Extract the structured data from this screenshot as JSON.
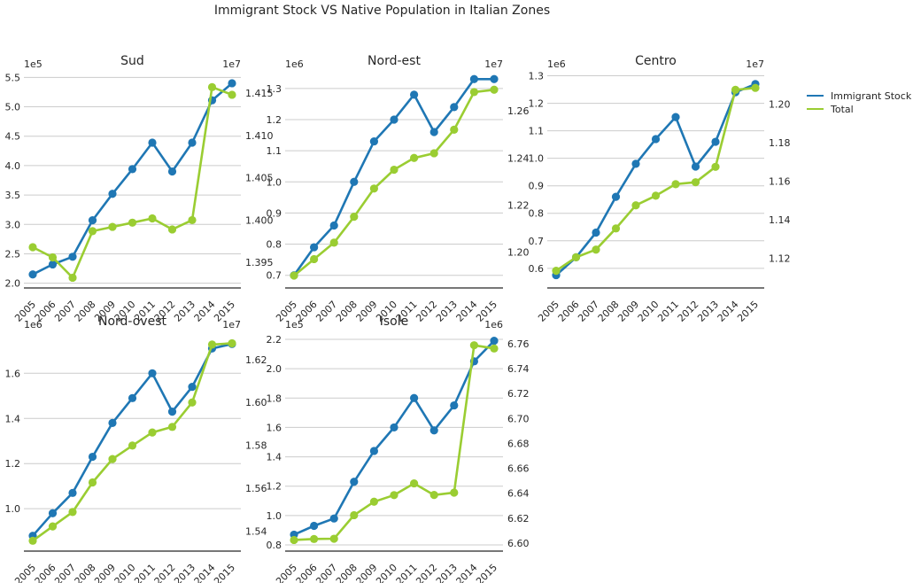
{
  "title": "Immigrant Stock VS Native Population in Italian Zones",
  "colors": {
    "immigrant": "#1f77b4",
    "total": "#9acd32"
  },
  "legend": {
    "placement": "top-right",
    "items": [
      "Immigrant Stock",
      "Total"
    ]
  },
  "chart_data": [
    {
      "type": "line",
      "panel_title": "Sud",
      "x": [
        "2005",
        "2006",
        "2007",
        "2008",
        "2009",
        "2010",
        "2011",
        "2012",
        "2013",
        "2014",
        "2015"
      ],
      "left_axis": {
        "multiplier": "1e5",
        "ylim": [
          1.95,
          5.55
        ],
        "ticks": [
          "2.0",
          "2.5",
          "3.0",
          "3.5",
          "4.0",
          "4.5",
          "5.0",
          "5.5"
        ]
      },
      "right_axis": {
        "multiplier": "1e7",
        "ylim": [
          1.3922,
          1.4172
        ],
        "ticks": [
          "1.395",
          "1.400",
          "1.405",
          "1.410",
          "1.415"
        ]
      },
      "series": [
        {
          "name": "Immigrant Stock",
          "axis": "left",
          "values": [
            2.15,
            2.32,
            2.45,
            3.07,
            3.52,
            3.94,
            4.39,
            3.9,
            4.39,
            5.11,
            5.4
          ]
        },
        {
          "name": "Total",
          "axis": "right",
          "values": [
            1.3968,
            1.3956,
            1.3932,
            1.3987,
            1.3992,
            1.3997,
            1.4002,
            1.3989,
            1.4,
            1.4157,
            1.4148
          ]
        }
      ]
    },
    {
      "type": "line",
      "panel_title": "Nord-est",
      "x": [
        "2005",
        "2006",
        "2007",
        "2008",
        "2009",
        "2010",
        "2011",
        "2012",
        "2013",
        "2014",
        "2015"
      ],
      "left_axis": {
        "multiplier": "1e6",
        "ylim": [
          0.665,
          1.345
        ],
        "ticks": [
          "0.7",
          "0.8",
          "0.9",
          "1.0",
          "1.1",
          "1.2",
          "1.3"
        ]
      },
      "right_axis": {
        "multiplier": "1e7",
        "ylim": [
          1.1855,
          1.2755
        ],
        "ticks": [
          "1.20",
          "1.22",
          "1.24",
          "1.26"
        ]
      },
      "series": [
        {
          "name": "Immigrant Stock",
          "axis": "left",
          "values": [
            0.7,
            0.79,
            0.86,
            1.0,
            1.13,
            1.2,
            1.28,
            1.16,
            1.24,
            1.33,
            1.33
          ]
        },
        {
          "name": "Total",
          "axis": "right",
          "values": [
            1.19,
            1.197,
            1.204,
            1.215,
            1.227,
            1.235,
            1.24,
            1.242,
            1.252,
            1.268,
            1.269
          ]
        }
      ]
    },
    {
      "type": "line",
      "panel_title": "Centro",
      "x": [
        "2005",
        "2006",
        "2007",
        "2008",
        "2009",
        "2010",
        "2011",
        "2012",
        "2013",
        "2014",
        "2015"
      ],
      "left_axis": {
        "multiplier": "1e6",
        "ylim": [
          0.535,
          1.305
        ],
        "ticks": [
          "0.6",
          "0.7",
          "0.8",
          "0.9",
          "1.0",
          "1.1",
          "1.2",
          "1.3"
        ]
      },
      "right_axis": {
        "multiplier": "1e7",
        "ylim": [
          1.1055,
          1.2155
        ],
        "ticks": [
          "1.12",
          "1.14",
          "1.16",
          "1.18",
          "1.20"
        ]
      },
      "series": [
        {
          "name": "Immigrant Stock",
          "axis": "left",
          "values": [
            0.575,
            0.64,
            0.73,
            0.86,
            0.98,
            1.07,
            1.15,
            0.97,
            1.06,
            1.24,
            1.27
          ]
        },
        {
          "name": "Total",
          "axis": "right",
          "values": [
            1.1135,
            1.1205,
            1.1245,
            1.1355,
            1.1475,
            1.1525,
            1.1585,
            1.1595,
            1.1675,
            1.2075,
            1.2085
          ]
        }
      ]
    },
    {
      "type": "line",
      "panel_title": "Nord-ovest",
      "x": [
        "2005",
        "2006",
        "2007",
        "2008",
        "2009",
        "2010",
        "2011",
        "2012",
        "2013",
        "2014",
        "2015"
      ],
      "left_axis": {
        "multiplier": "1e6",
        "ylim": [
          0.82,
          1.77
        ],
        "ticks": [
          "1.0",
          "1.2",
          "1.4",
          "1.6"
        ]
      },
      "right_axis": {
        "multiplier": "1e7",
        "ylim": [
          1.5315,
          1.6315
        ],
        "ticks": [
          "1.54",
          "1.56",
          "1.58",
          "1.60",
          "1.62"
        ]
      },
      "series": [
        {
          "name": "Immigrant Stock",
          "axis": "left",
          "values": [
            0.88,
            0.98,
            1.07,
            1.23,
            1.38,
            1.49,
            1.6,
            1.43,
            1.54,
            1.71,
            1.73
          ]
        },
        {
          "name": "Total",
          "axis": "right",
          "values": [
            1.5355,
            1.5422,
            1.5489,
            1.5627,
            1.5736,
            1.5799,
            1.586,
            1.5886,
            1.6,
            1.627,
            1.6276
          ]
        }
      ]
    },
    {
      "type": "line",
      "panel_title": "Isole",
      "x": [
        "2005",
        "2006",
        "2007",
        "2008",
        "2009",
        "2010",
        "2011",
        "2012",
        "2013",
        "2014",
        "2015"
      ],
      "left_axis": {
        "multiplier": "1e5",
        "ylim": [
          0.77,
          2.23
        ],
        "ticks": [
          "0.8",
          "1.0",
          "1.2",
          "1.4",
          "1.6",
          "1.8",
          "2.0",
          "2.2"
        ]
      },
      "right_axis": {
        "multiplier": "1e6",
        "ylim": [
          6.595,
          6.767
        ],
        "ticks": [
          "6.60",
          "6.62",
          "6.64",
          "6.66",
          "6.68",
          "6.70",
          "6.72",
          "6.74",
          "6.76"
        ]
      },
      "series": [
        {
          "name": "Immigrant Stock",
          "axis": "left",
          "values": [
            0.87,
            0.93,
            0.98,
            1.23,
            1.44,
            1.6,
            1.8,
            1.58,
            1.75,
            2.05,
            2.19
          ]
        },
        {
          "name": "Total",
          "axis": "right",
          "values": [
            6.6025,
            6.6033,
            6.6035,
            6.6224,
            6.6332,
            6.6385,
            6.6479,
            6.6386,
            6.6405,
            6.7587,
            6.7561
          ]
        }
      ]
    }
  ]
}
